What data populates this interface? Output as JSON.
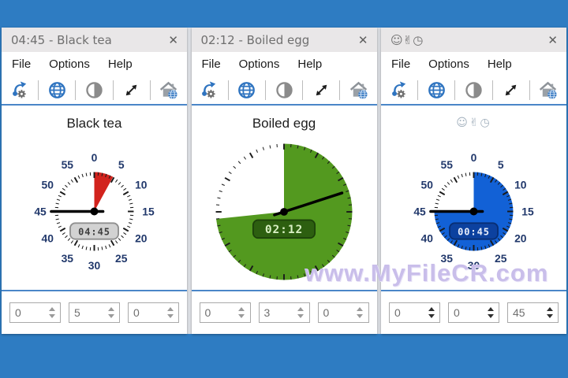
{
  "page": {
    "desktop_color": "#2e7cc2",
    "accent_line_color": "#4a86c8",
    "gap_color": "#dfe2e7",
    "watermark": "www.MyFileCR.com",
    "close_glyph": "✕"
  },
  "windows": [
    {
      "title": "04:45 - Black tea",
      "menu": [
        "File",
        "Options",
        "Help"
      ],
      "toolbar_icons": [
        "pointer-settings",
        "globe",
        "contrast",
        "resize",
        "home-globe"
      ],
      "label": "Black tea",
      "label_icons": false,
      "dial": {
        "show_numbers": true,
        "numbers": [
          "0",
          "5",
          "10",
          "15",
          "20",
          "25",
          "30",
          "35",
          "40",
          "45",
          "50",
          "55"
        ],
        "wedge_color": "#d2231d",
        "wedge_start_deg": 0,
        "wedge_end_deg": 28.5,
        "hand_deg": 270,
        "display": {
          "text": "04:45",
          "bg": "#d2d2d2",
          "border": "#8f8f8f",
          "color": "#3f3f3f"
        }
      },
      "spinners": [
        "0",
        "5",
        "0"
      ],
      "spinner_arrow_color": "#9a9a9a"
    },
    {
      "title": "02:12 - Boiled egg",
      "menu": [
        "File",
        "Options",
        "Help"
      ],
      "toolbar_icons": [
        "pointer-settings",
        "globe",
        "contrast",
        "resize",
        "home-globe"
      ],
      "label": "Boiled egg",
      "label_icons": false,
      "dial": {
        "show_numbers": false,
        "numbers": [],
        "wedge_color": "#53991f",
        "wedge_start_deg": 0,
        "wedge_end_deg": 264,
        "hand_deg": 72,
        "display": {
          "text": "02:12",
          "bg": "#2d5f10",
          "border": "#1d420a",
          "color": "#d9f0c4"
        }
      },
      "spinners": [
        "0",
        "3",
        "0"
      ],
      "spinner_arrow_color": "#9a9a9a"
    },
    {
      "title": "☺✌◷",
      "menu": [
        "File",
        "Options",
        "Help"
      ],
      "toolbar_icons": [
        "pointer-settings",
        "globe",
        "contrast",
        "resize",
        "home-globe"
      ],
      "label": "☺✌◷",
      "label_icons": true,
      "dial": {
        "show_numbers": true,
        "numbers": [
          "0",
          "5",
          "10",
          "15",
          "20",
          "25",
          "30",
          "35",
          "40",
          "45",
          "50",
          "55"
        ],
        "wedge_color": "#1261d6",
        "wedge_start_deg": 0,
        "wedge_end_deg": 270,
        "hand_deg": 270,
        "display": {
          "text": "00:45",
          "bg": "#0c419f",
          "border": "#082e73",
          "color": "#e9eefb"
        }
      },
      "spinners": [
        "0",
        "0",
        "45"
      ],
      "spinner_arrow_color": "#2f2f2f"
    }
  ]
}
